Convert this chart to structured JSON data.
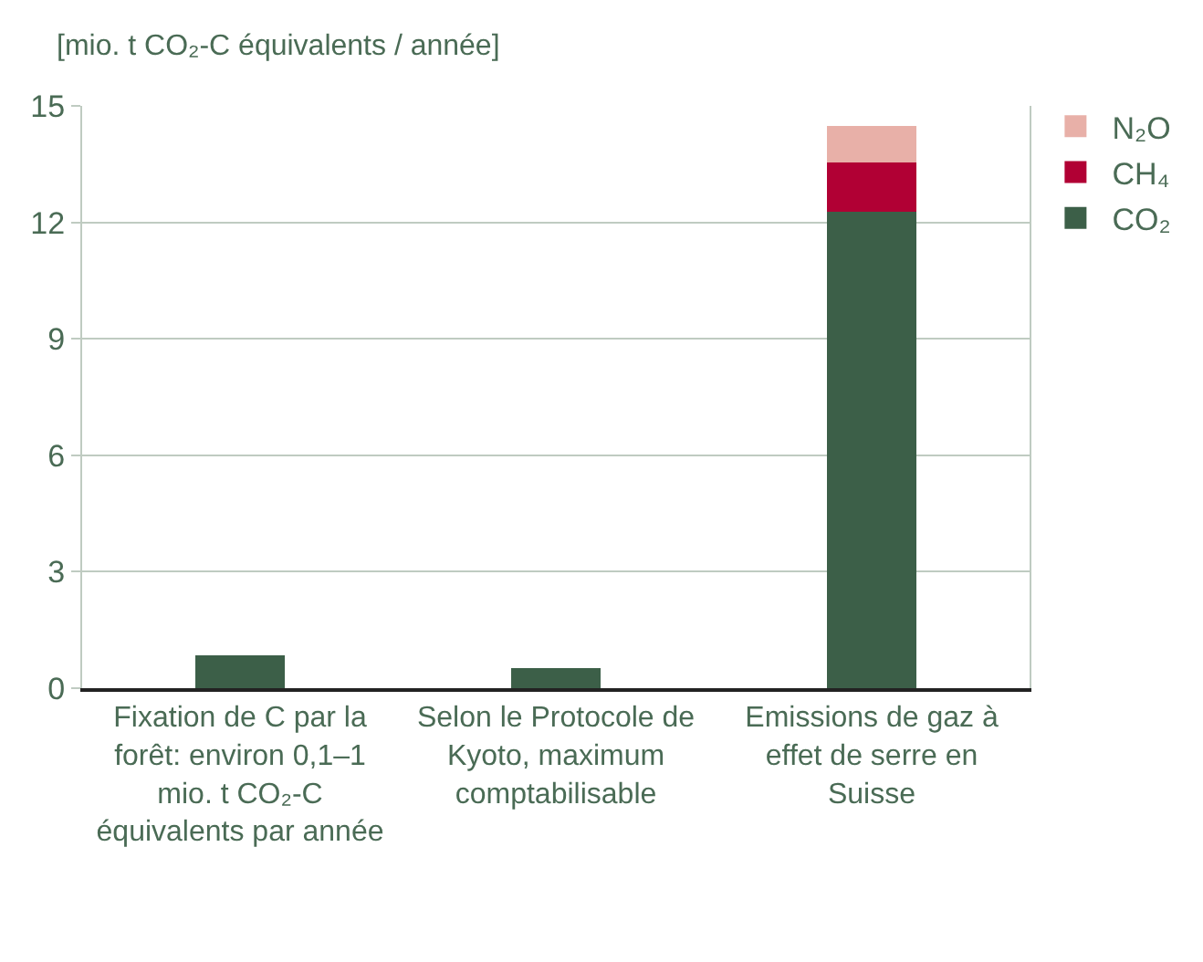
{
  "chart_data": {
    "type": "bar",
    "stacked": true,
    "ylabel": "[mio. t CO₂-C équivalents / année]",
    "categories": [
      "Fixation de C par la forêt: environ 0,1–1 mio. t CO₂-C équivalents par année",
      "Selon le Protocole de Kyoto, maximum comptabilisable",
      "Emissions de gaz à effet de serre en Suisse"
    ],
    "series": [
      {
        "name": "CO₂",
        "color": "#3c5f48",
        "values": [
          0.87,
          0.5,
          12.25
        ]
      },
      {
        "name": "CH₄",
        "color": "#b10034",
        "values": [
          null,
          null,
          1.3
        ]
      },
      {
        "name": "N₂O",
        "color": "#e8b0a8",
        "values": [
          null,
          null,
          0.95
        ]
      }
    ],
    "ylim": [
      0,
      15
    ],
    "yticks": [
      0,
      3,
      6,
      9,
      12,
      15
    ],
    "grid": "y",
    "legend": "top right"
  }
}
